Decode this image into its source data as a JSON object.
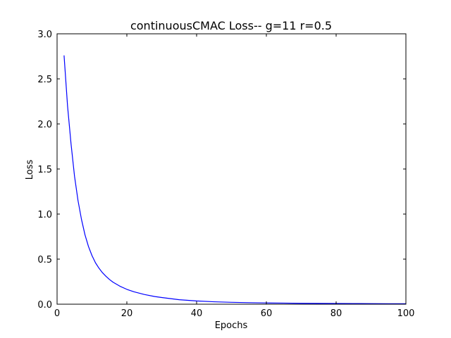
{
  "chart_data": {
    "type": "line",
    "title": "continuousCMAC Loss-- g=11 r=0.5",
    "xlabel": "Epochs",
    "ylabel": "Loss",
    "xlim": [
      0,
      100
    ],
    "ylim": [
      0,
      3.0
    ],
    "xticks": [
      0,
      20,
      40,
      60,
      80,
      100
    ],
    "yticks": [
      0.0,
      0.5,
      1.0,
      1.5,
      2.0,
      2.5,
      3.0
    ],
    "xtick_labels": [
      "0",
      "20",
      "40",
      "60",
      "80",
      "100"
    ],
    "ytick_labels": [
      "0.0",
      "0.5",
      "1.0",
      "1.5",
      "2.0",
      "2.5",
      "3.0"
    ],
    "grid": false,
    "series": [
      {
        "color": "#0000ff",
        "x": [
          2,
          3,
          4,
          5,
          6,
          7,
          8,
          9,
          10,
          11,
          12,
          13,
          14,
          15,
          16,
          18,
          20,
          22,
          25,
          28,
          30,
          35,
          40,
          45,
          50,
          55,
          60,
          65,
          70,
          75,
          80,
          85,
          90,
          95,
          100
        ],
        "y": [
          2.76,
          2.2,
          1.78,
          1.42,
          1.15,
          0.94,
          0.77,
          0.64,
          0.54,
          0.46,
          0.4,
          0.35,
          0.31,
          0.275,
          0.245,
          0.2,
          0.165,
          0.138,
          0.108,
          0.085,
          0.074,
          0.05,
          0.036,
          0.027,
          0.021,
          0.017,
          0.014,
          0.012,
          0.01,
          0.009,
          0.008,
          0.007,
          0.006,
          0.0055,
          0.005
        ]
      }
    ]
  }
}
